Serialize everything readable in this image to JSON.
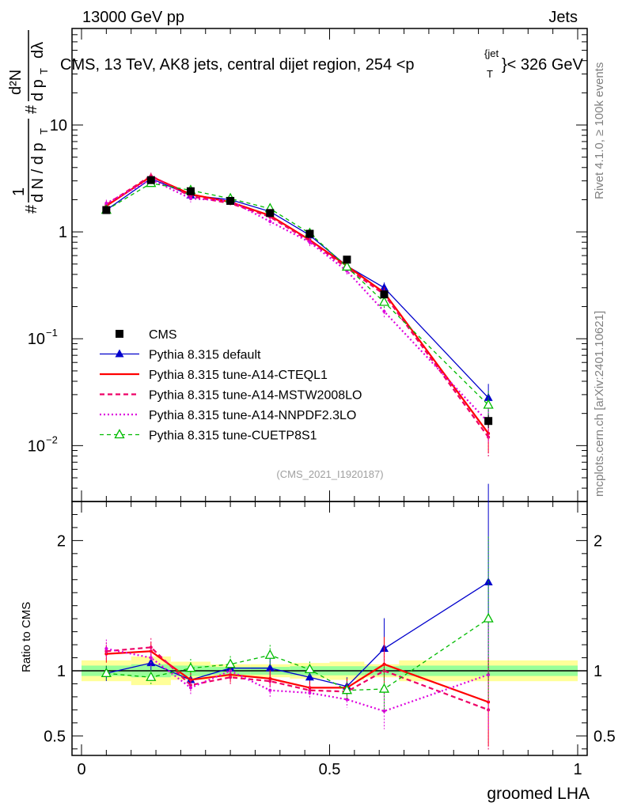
{
  "header": {
    "left": "13000 GeV pp",
    "right": "Jets",
    "title_pre": "CMS, 13 TeV, AK8 jets, central dijet region, 254 <p",
    "title_sup": "{jet",
    "title_sub": "T",
    "title_post": "}< 326 GeV",
    "ylabel": "#(1/dN / dp_T) (d²N / dp_T dλ)",
    "side_rivet": "Rivet 4.1.0, ≥ 100k events",
    "side_mcplots": "mcplots.cern.ch [arXiv:2401.10621]",
    "analysis_id": "(CMS_2021_I1920187)"
  },
  "colors": {
    "cms": "#000000",
    "default": "#0000cc",
    "cteql1": "#ff0000",
    "mstw": "#ee0066",
    "nnpdf": "#dd00dd",
    "cuetp8s1": "#00bb00",
    "band_inner": "#99ff99",
    "band_outer": "#ffff99"
  },
  "chart_data": [
    {
      "type": "line",
      "scale": "log",
      "x": [
        0.05,
        0.14,
        0.22,
        0.3,
        0.38,
        0.46,
        0.535,
        0.61,
        0.82
      ],
      "xlim": [
        0,
        1
      ],
      "ylim": [
        0.003,
        80
      ],
      "yticks": [
        {
          "value": 10,
          "label": "10"
        },
        {
          "value": 1,
          "label": "1"
        },
        {
          "value": 0.1,
          "label": "10",
          "exp": "−1"
        },
        {
          "value": 0.01,
          "label": "10",
          "exp": "−2"
        }
      ],
      "series": [
        {
          "key": "cms",
          "name": "CMS",
          "values": [
            1.6,
            3.05,
            2.4,
            1.95,
            1.5,
            0.96,
            0.55,
            0.26,
            0.017
          ]
        },
        {
          "key": "default",
          "name": "Pythia 8.315 default",
          "values": [
            1.6,
            3.15,
            2.2,
            2.0,
            1.55,
            0.93,
            0.48,
            0.3,
            0.028
          ]
        },
        {
          "key": "cteql1",
          "name": "Pythia 8.315 tune-A14-CTEQL1",
          "values": [
            1.75,
            3.3,
            2.25,
            1.9,
            1.42,
            0.84,
            0.48,
            0.27,
            0.013
          ]
        },
        {
          "key": "mstw",
          "name": "Pythia 8.315 tune-A14-MSTW2008LO",
          "values": [
            1.8,
            3.35,
            2.15,
            1.85,
            1.38,
            0.82,
            0.46,
            0.26,
            0.012
          ]
        },
        {
          "key": "nnpdf",
          "name": "Pythia 8.315 tune-A14-NNPDF2.3LO",
          "values": [
            1.85,
            3.1,
            2.05,
            1.95,
            1.25,
            0.8,
            0.43,
            0.18,
            0.0165
          ]
        },
        {
          "key": "cuetp8s1",
          "name": "Pythia 8.315 tune-CUETP8S1",
          "values": [
            1.6,
            2.85,
            2.45,
            2.05,
            1.65,
            0.97,
            0.47,
            0.22,
            0.024
          ]
        }
      ]
    },
    {
      "type": "line",
      "ylabel": "Ratio to CMS",
      "xlabel": "groomed LHA",
      "xlim": [
        0,
        1
      ],
      "ylim": [
        0.35,
        2.3
      ],
      "xticks": [
        {
          "value": 0,
          "label": "0"
        },
        {
          "value": 0.5,
          "label": "0.5"
        },
        {
          "value": 1,
          "label": "1"
        }
      ],
      "yticks": [
        {
          "value": 2,
          "label": "2"
        },
        {
          "value": 1,
          "label": "1"
        },
        {
          "value": 0.5,
          "label": "0.5"
        }
      ],
      "x": [
        0.05,
        0.14,
        0.22,
        0.3,
        0.38,
        0.46,
        0.535,
        0.61,
        0.82
      ],
      "bands": [
        {
          "x0": 0.0,
          "x1": 0.1,
          "inner": 0.04,
          "outer": 0.08
        },
        {
          "x0": 0.1,
          "x1": 0.18,
          "inner": 0.05,
          "outer": 0.11
        },
        {
          "x0": 0.18,
          "x1": 0.26,
          "inner": 0.04,
          "outer": 0.07
        },
        {
          "x0": 0.26,
          "x1": 0.34,
          "inner": 0.03,
          "outer": 0.05
        },
        {
          "x0": 0.34,
          "x1": 0.42,
          "inner": 0.03,
          "outer": 0.05
        },
        {
          "x0": 0.42,
          "x1": 0.5,
          "inner": 0.035,
          "outer": 0.06
        },
        {
          "x0": 0.5,
          "x1": 0.57,
          "inner": 0.035,
          "outer": 0.07
        },
        {
          "x0": 0.57,
          "x1": 0.64,
          "inner": 0.035,
          "outer": 0.05
        },
        {
          "x0": 0.64,
          "x1": 1.0,
          "inner": 0.04,
          "outer": 0.08
        }
      ],
      "series": [
        {
          "key": "default",
          "values": [
            0.98,
            1.06,
            0.93,
            1.02,
            1.02,
            0.95,
            0.88,
            1.17,
            1.68
          ]
        },
        {
          "key": "cteql1",
          "values": [
            1.13,
            1.15,
            0.93,
            0.97,
            0.94,
            0.87,
            0.87,
            1.05,
            0.76
          ]
        },
        {
          "key": "mstw",
          "values": [
            1.15,
            1.18,
            0.89,
            0.95,
            0.92,
            0.85,
            0.84,
            1.0,
            0.7
          ]
        },
        {
          "key": "nnpdf",
          "values": [
            1.17,
            1.1,
            0.87,
            1.0,
            0.85,
            0.83,
            0.78,
            0.69,
            0.97
          ]
        },
        {
          "key": "cuetp8s1",
          "values": [
            0.98,
            0.95,
            1.02,
            1.05,
            1.12,
            1.01,
            0.85,
            0.86,
            1.4
          ]
        }
      ]
    }
  ]
}
